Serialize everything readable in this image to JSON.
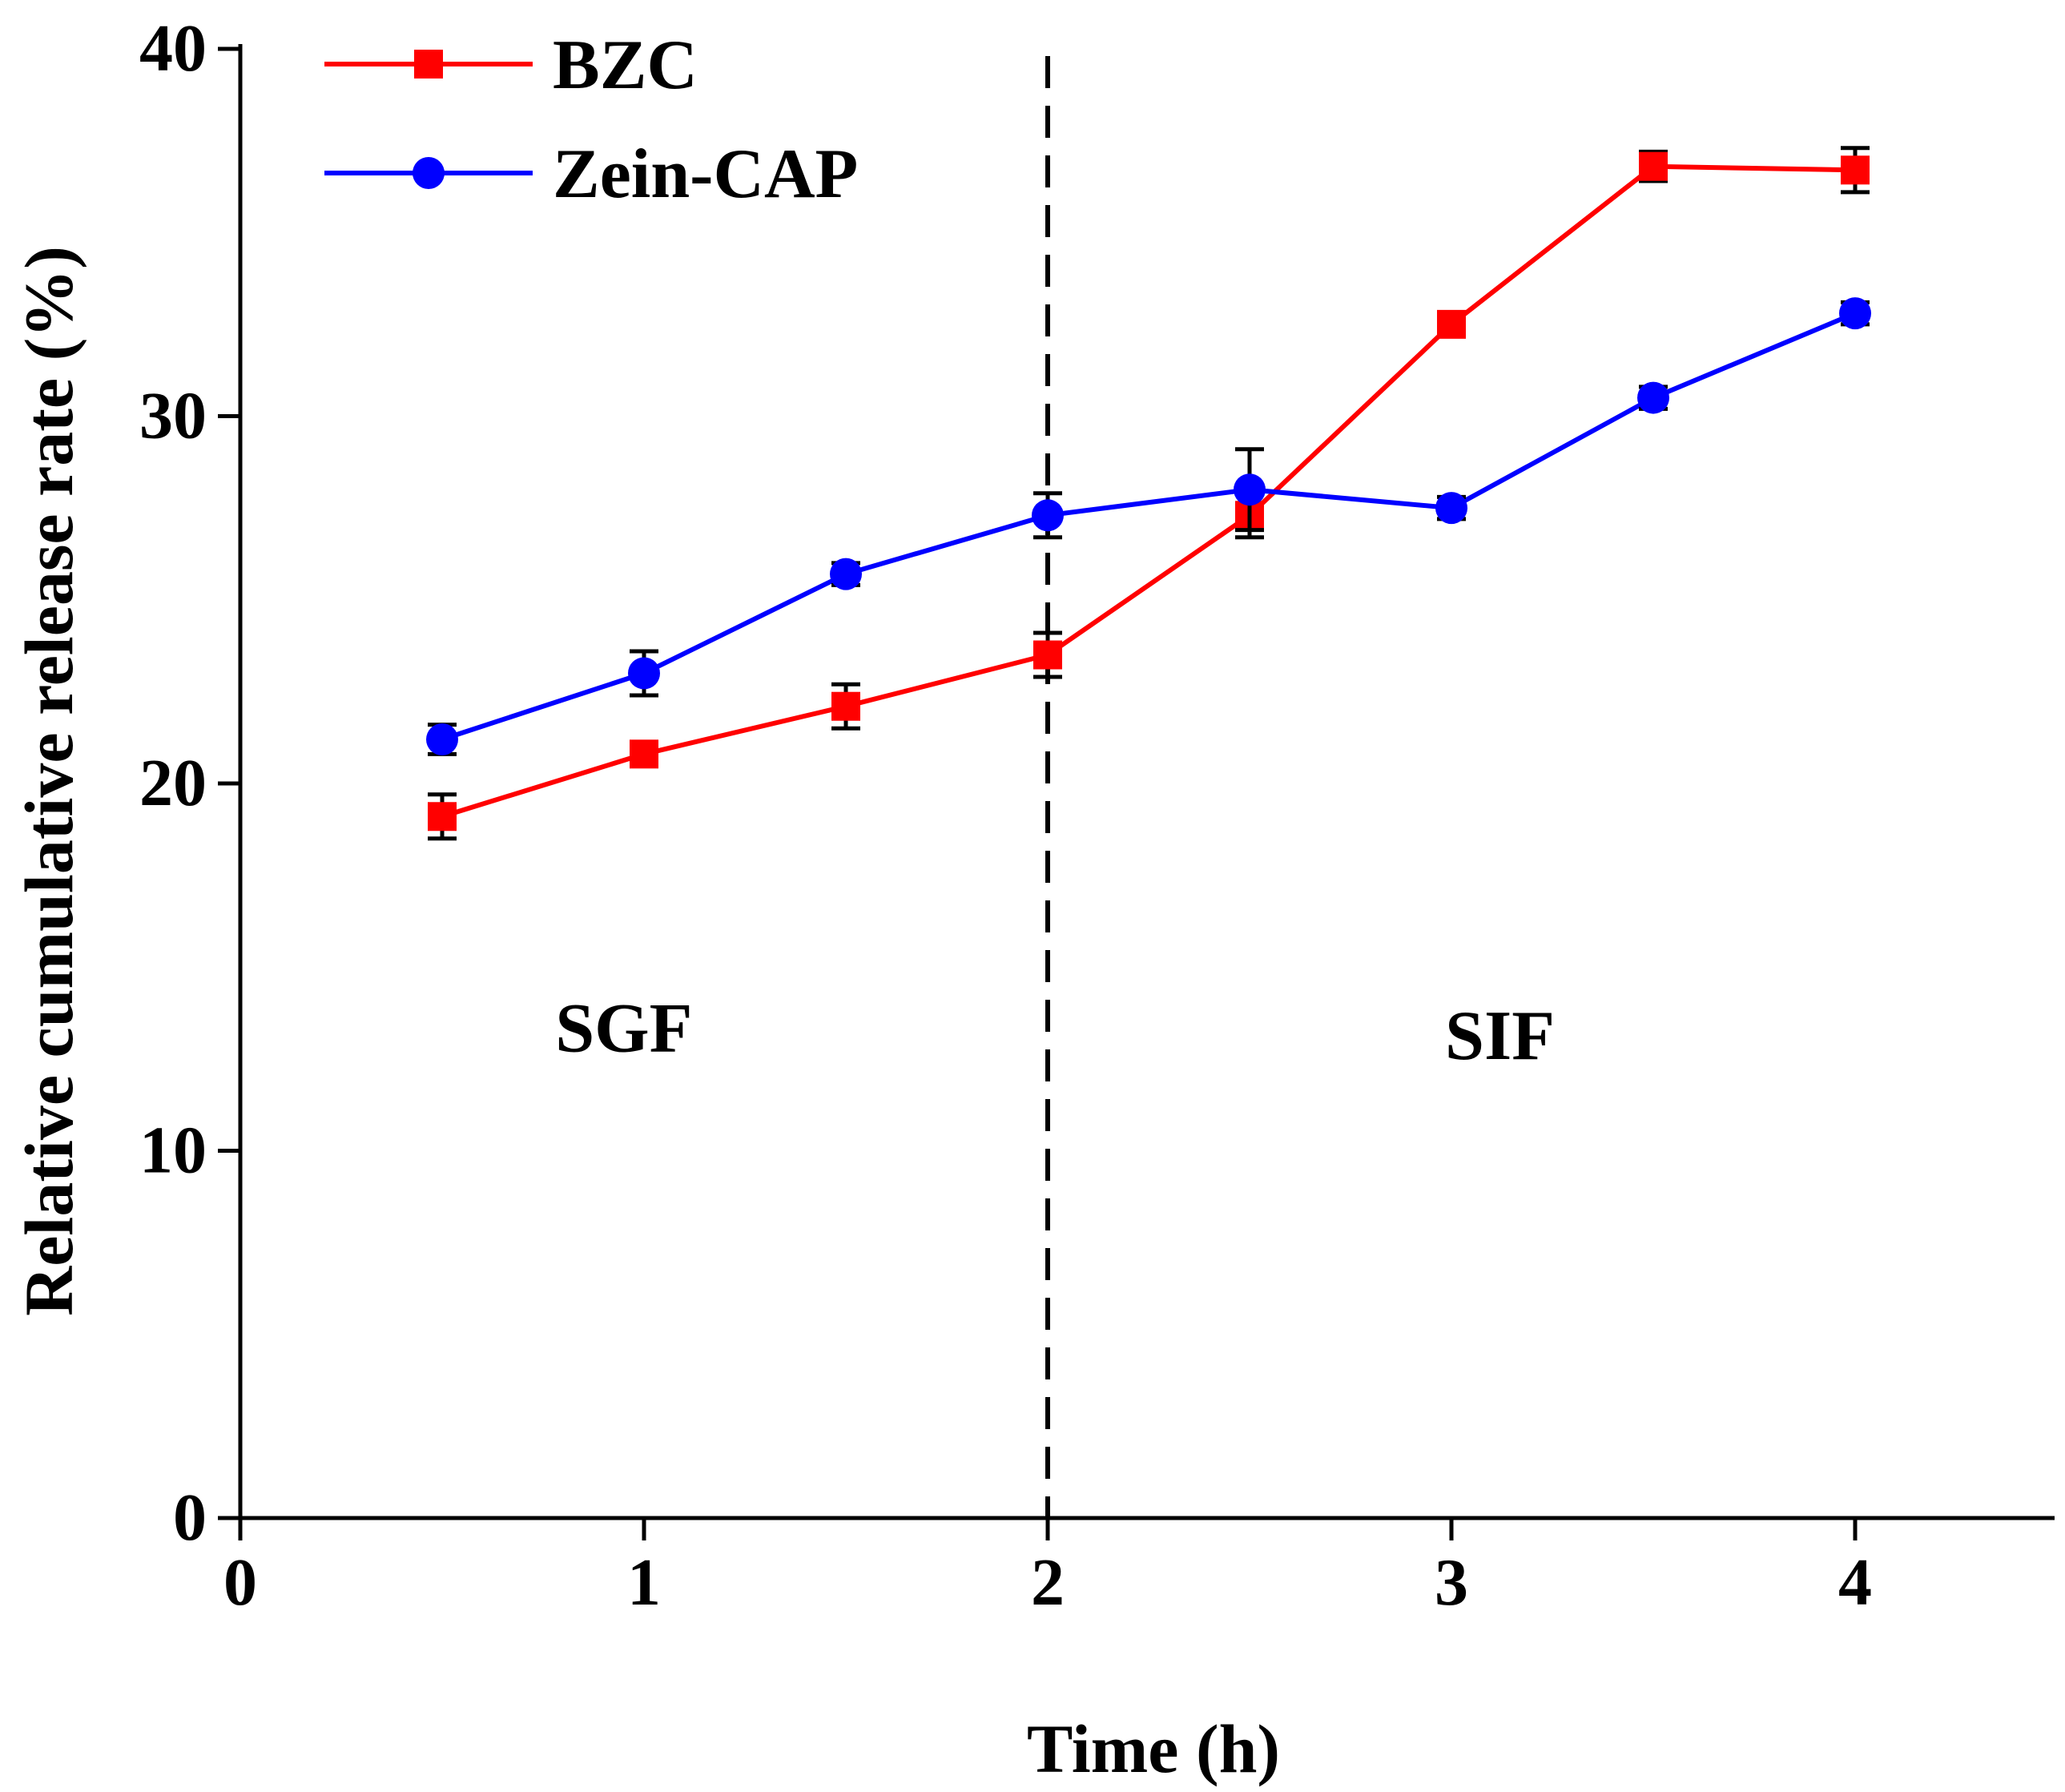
{
  "chart_data": {
    "type": "line",
    "title": "",
    "xlabel": "Time (h)",
    "ylabel": "Relative cumulative release rate (%)",
    "xlim": [
      0,
      4.5
    ],
    "ylim": [
      0,
      40
    ],
    "x_ticks": [
      0,
      1,
      2,
      3,
      4
    ],
    "y_ticks": [
      0,
      10,
      20,
      30,
      40
    ],
    "x_tick_labels": [
      "0",
      "1",
      "2",
      "3",
      "4"
    ],
    "y_tick_labels": [
      "0",
      "10",
      "20",
      "30",
      "40"
    ],
    "grid": false,
    "legend_position": "top-left",
    "divider_x": 2,
    "regions": [
      {
        "label": "SGF",
        "x": 0.95,
        "y": 12.7
      },
      {
        "label": "SIF",
        "x": 3.12,
        "y": 12.5
      }
    ],
    "series": [
      {
        "name": "BZC",
        "color": "#ff0000",
        "marker": "square",
        "x": [
          0.5,
          1.0,
          1.5,
          2.0,
          2.5,
          3.0,
          3.5,
          4.0
        ],
        "values": [
          19.1,
          20.8,
          22.1,
          23.5,
          27.3,
          32.5,
          36.8,
          36.7
        ],
        "errors": [
          0.6,
          0.3,
          0.6,
          0.6,
          0.6,
          0.3,
          0.4,
          0.6
        ]
      },
      {
        "name": "Zein-CAP",
        "color": "#0000ff",
        "marker": "circle",
        "x": [
          0.5,
          1.0,
          1.5,
          2.0,
          2.5,
          3.0,
          3.5,
          4.0
        ],
        "values": [
          21.2,
          23.0,
          25.7,
          27.3,
          28.0,
          27.5,
          30.5,
          32.8
        ],
        "errors": [
          0.4,
          0.6,
          0.3,
          0.6,
          1.1,
          0.3,
          0.3,
          0.3
        ]
      }
    ]
  }
}
